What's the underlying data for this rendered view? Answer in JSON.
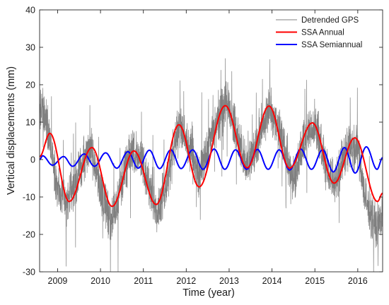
{
  "chart_data": {
    "type": "line",
    "title": "",
    "xlabel": "Time (year)",
    "ylabel": "Vertical displacements (mm)",
    "xlim": [
      2008.58,
      2016.58
    ],
    "ylim": [
      -30,
      40
    ],
    "x_ticks": [
      2009,
      2010,
      2011,
      2012,
      2013,
      2014,
      2015,
      2016
    ],
    "x_tick_labels": [
      "2009",
      "2010",
      "2011",
      "2012",
      "2013",
      "2014",
      "2015",
      "2016"
    ],
    "y_ticks": [
      -30,
      -20,
      -10,
      0,
      10,
      20,
      30,
      40
    ],
    "y_tick_labels": [
      "-30",
      "-20",
      "-10",
      "0",
      "10",
      "20",
      "30",
      "40"
    ],
    "grid": false,
    "legend_position": "top-right",
    "series": [
      {
        "name": "Detrended GPS",
        "color": "#808080",
        "style": "noisy daily series",
        "envelope_points": [
          [
            2008.6,
            14
          ],
          [
            2008.75,
            10
          ],
          [
            2009.0,
            -8
          ],
          [
            2009.2,
            -12
          ],
          [
            2009.45,
            -5
          ],
          [
            2009.75,
            4
          ],
          [
            2010.0,
            -8
          ],
          [
            2010.25,
            -17
          ],
          [
            2010.45,
            -8
          ],
          [
            2010.75,
            3
          ],
          [
            2011.0,
            -2
          ],
          [
            2011.3,
            -14
          ],
          [
            2011.5,
            -8
          ],
          [
            2011.85,
            10
          ],
          [
            2012.0,
            5
          ],
          [
            2012.3,
            -5
          ],
          [
            2012.55,
            5
          ],
          [
            2012.95,
            16
          ],
          [
            2013.15,
            8
          ],
          [
            2013.4,
            -2
          ],
          [
            2013.6,
            3
          ],
          [
            2013.95,
            14
          ],
          [
            2014.3,
            3
          ],
          [
            2014.5,
            -6
          ],
          [
            2014.75,
            5
          ],
          [
            2015.0,
            10
          ],
          [
            2015.3,
            -4
          ],
          [
            2015.5,
            -5
          ],
          [
            2015.75,
            4
          ],
          [
            2016.0,
            3
          ],
          [
            2016.2,
            -12
          ],
          [
            2016.45,
            -18
          ],
          [
            2016.58,
            -16
          ]
        ]
      },
      {
        "name": "SSA Annual",
        "color": "#ff0000",
        "extrema": [
          [
            2008.58,
            0.8
          ],
          [
            2008.82,
            7
          ],
          [
            2009.27,
            -11.2
          ],
          [
            2009.8,
            3.2
          ],
          [
            2010.27,
            -12.5
          ],
          [
            2010.78,
            2.3
          ],
          [
            2011.3,
            -12
          ],
          [
            2011.83,
            9.3
          ],
          [
            2012.3,
            -7.3
          ],
          [
            2012.91,
            14.4
          ],
          [
            2013.42,
            -2.2
          ],
          [
            2013.93,
            14.3
          ],
          [
            2014.41,
            -2.3
          ],
          [
            2014.94,
            9.8
          ],
          [
            2015.45,
            -6.3
          ],
          [
            2015.93,
            5.8
          ],
          [
            2016.46,
            -11.2
          ],
          [
            2016.58,
            -9
          ]
        ]
      },
      {
        "name": "SSA Semiannual",
        "color": "#0000ff",
        "extrema": [
          [
            2008.58,
            0
          ],
          [
            2008.65,
            1
          ],
          [
            2008.88,
            -1.5
          ],
          [
            2009.14,
            0.8
          ],
          [
            2009.35,
            -1.8
          ],
          [
            2009.62,
            1.5
          ],
          [
            2009.86,
            -1.8
          ],
          [
            2010.12,
            1.8
          ],
          [
            2010.38,
            -2.3
          ],
          [
            2010.64,
            2.1
          ],
          [
            2010.88,
            -2.3
          ],
          [
            2011.14,
            2.5
          ],
          [
            2011.38,
            -2.4
          ],
          [
            2011.64,
            2.6
          ],
          [
            2011.88,
            -2.4
          ],
          [
            2012.15,
            2.6
          ],
          [
            2012.39,
            -2.6
          ],
          [
            2012.65,
            2.8
          ],
          [
            2012.9,
            -2.6
          ],
          [
            2013.15,
            2.6
          ],
          [
            2013.41,
            -2.6
          ],
          [
            2013.66,
            2.7
          ],
          [
            2013.91,
            -2.6
          ],
          [
            2014.17,
            2.6
          ],
          [
            2014.41,
            -2.8
          ],
          [
            2014.67,
            2.8
          ],
          [
            2014.92,
            -2.6
          ],
          [
            2015.18,
            2.6
          ],
          [
            2015.43,
            -3.3
          ],
          [
            2015.69,
            3.2
          ],
          [
            2015.94,
            -3.6
          ],
          [
            2016.2,
            3.4
          ],
          [
            2016.45,
            -2.6
          ],
          [
            2016.58,
            0.5
          ]
        ]
      }
    ]
  }
}
